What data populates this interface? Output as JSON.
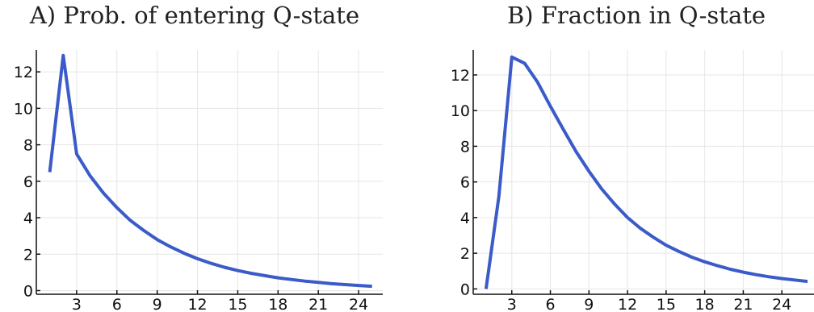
{
  "chart_data": [
    {
      "type": "line",
      "title": "A) Prob. of entering Q-state",
      "xlabel": "",
      "ylabel": "",
      "xlim": [
        0,
        25.8
      ],
      "ylim": [
        -0.2,
        13.2
      ],
      "xticks": [
        3,
        6,
        9,
        12,
        15,
        18,
        21,
        24
      ],
      "yticks": [
        0,
        2,
        4,
        6,
        8,
        10,
        12
      ],
      "grid": true,
      "series": [
        {
          "color": "#3a5bc8",
          "x": [
            1,
            2,
            3,
            4,
            5,
            6,
            7,
            8,
            9,
            10,
            11,
            12,
            13,
            14,
            15,
            16,
            17,
            18,
            19,
            20,
            21,
            22,
            23,
            24,
            25
          ],
          "y": [
            6.5,
            12.9,
            7.5,
            6.3,
            5.35,
            4.55,
            3.85,
            3.3,
            2.8,
            2.4,
            2.05,
            1.75,
            1.5,
            1.28,
            1.1,
            0.95,
            0.82,
            0.7,
            0.61,
            0.52,
            0.45,
            0.38,
            0.33,
            0.28,
            0.24
          ]
        }
      ]
    },
    {
      "type": "line",
      "title": "B) Fraction in Q-state",
      "xlabel": "",
      "ylabel": "",
      "xlim": [
        0,
        26.5
      ],
      "ylim": [
        -0.3,
        13.4
      ],
      "xticks": [
        3,
        6,
        9,
        12,
        15,
        18,
        21,
        24
      ],
      "yticks": [
        0,
        2,
        4,
        6,
        8,
        10,
        12
      ],
      "grid": true,
      "series": [
        {
          "color": "#3a5bc8",
          "x": [
            1,
            2,
            3,
            4,
            5,
            6,
            7,
            8,
            9,
            10,
            11,
            12,
            13,
            14,
            15,
            16,
            17,
            18,
            19,
            20,
            21,
            22,
            23,
            24,
            25,
            26
          ],
          "y": [
            0,
            5.2,
            13.0,
            12.65,
            11.6,
            10.25,
            8.95,
            7.7,
            6.6,
            5.6,
            4.75,
            4.0,
            3.4,
            2.9,
            2.45,
            2.1,
            1.78,
            1.52,
            1.3,
            1.1,
            0.94,
            0.8,
            0.68,
            0.58,
            0.5,
            0.42
          ]
        }
      ]
    }
  ]
}
